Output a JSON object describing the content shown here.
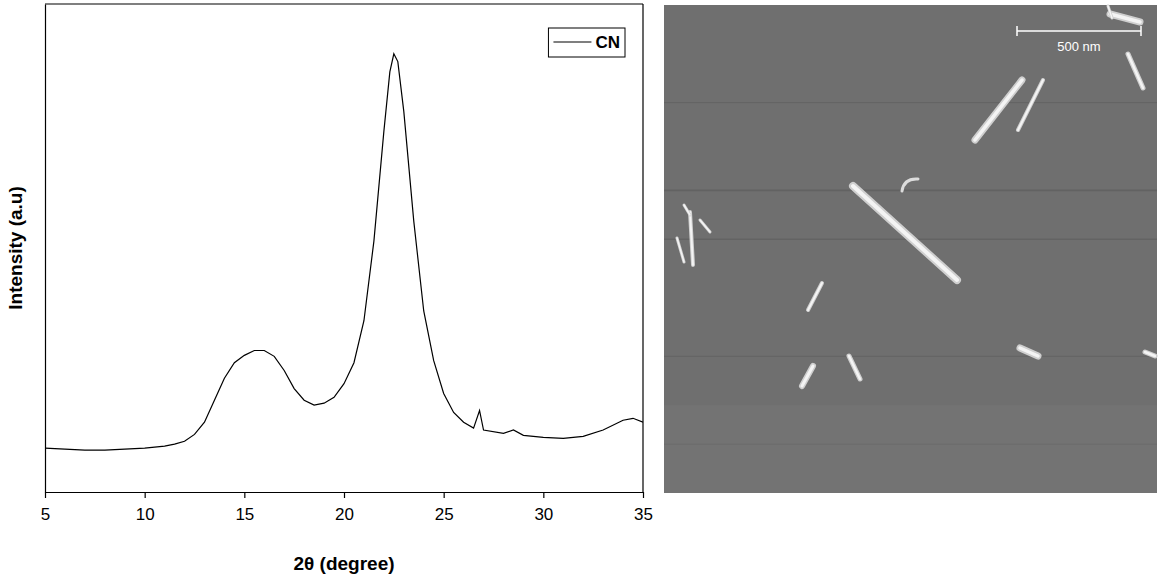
{
  "chart_data": {
    "type": "line",
    "x_label": "2θ (degree)",
    "y_label": "Intensity (a.u)",
    "x": [
      5,
      6,
      7,
      8,
      9,
      10,
      11,
      11.5,
      12,
      12.5,
      13,
      13.5,
      14,
      14.5,
      15,
      15.5,
      16,
      16.5,
      17,
      17.5,
      18,
      18.5,
      19,
      19.5,
      20,
      20.5,
      21,
      21.5,
      22,
      22.3,
      22.5,
      22.7,
      23,
      23.5,
      24,
      24.5,
      25,
      25.5,
      26,
      26.5,
      26.8,
      27,
      28,
      28.5,
      29,
      30,
      31,
      32,
      33,
      34,
      34.5,
      35
    ],
    "series": [
      {
        "name": "CN",
        "color": "#000000",
        "values": [
          9.0,
          8.8,
          8.6,
          8.6,
          8.8,
          9.0,
          9.4,
          9.8,
          10.4,
          11.8,
          14.3,
          18.8,
          23.3,
          26.5,
          28.0,
          29.0,
          29.0,
          27.8,
          24.9,
          21.2,
          18.8,
          17.8,
          18.2,
          19.4,
          22.2,
          26.5,
          35.1,
          51.4,
          73.9,
          86.1,
          89.8,
          88.2,
          78.0,
          55.5,
          37.1,
          26.9,
          20.2,
          16.3,
          14.3,
          13.1,
          16.7,
          12.7,
          12.0,
          12.7,
          11.6,
          11.2,
          11.0,
          11.4,
          12.7,
          14.7,
          15.1,
          14.3
        ]
      }
    ],
    "xlim": [
      5,
      35
    ],
    "xticks": [
      5,
      10,
      15,
      20,
      25,
      30,
      35
    ],
    "ylim": [
      0,
      100
    ],
    "tick_labels": "x",
    "legend": "upper right"
  },
  "afm_image": {
    "scale_bar_label": "500 nm"
  }
}
